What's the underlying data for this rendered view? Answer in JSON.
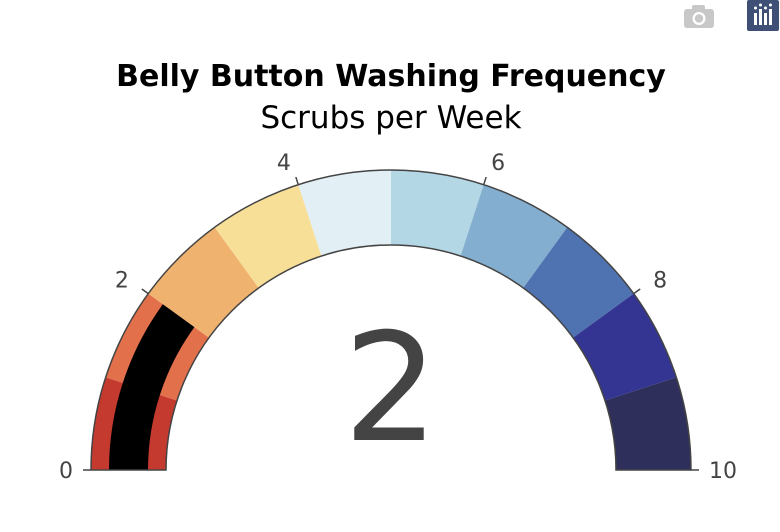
{
  "toolbar": {
    "camera_icon": "camera-icon",
    "plotly_logo": "plotly-logo-icon",
    "camera_color": "#c8c8c8",
    "logo_color": "#3f4f75"
  },
  "chart_data": {
    "type": "gauge",
    "title": "Belly Button Washing Frequency",
    "subtitle": "Scrubs per Week",
    "value": 2,
    "value_label": "2",
    "range": [
      0,
      10
    ],
    "ticks": [
      {
        "value": 0,
        "label": "0"
      },
      {
        "value": 2,
        "label": "2"
      },
      {
        "value": 4,
        "label": "4"
      },
      {
        "value": 6,
        "label": "6"
      },
      {
        "value": 8,
        "label": "8"
      },
      {
        "value": 10,
        "label": "10"
      }
    ],
    "steps": [
      {
        "range": [
          0,
          1
        ],
        "color": "#c53a2e"
      },
      {
        "range": [
          1,
          2
        ],
        "color": "#e2704b"
      },
      {
        "range": [
          2,
          3
        ],
        "color": "#efb36f"
      },
      {
        "range": [
          3,
          4
        ],
        "color": "#f8df98"
      },
      {
        "range": [
          4,
          5
        ],
        "color": "#e2eff5"
      },
      {
        "range": [
          5,
          6
        ],
        "color": "#b4d7e6"
      },
      {
        "range": [
          6,
          7
        ],
        "color": "#83aecf"
      },
      {
        "range": [
          7,
          8
        ],
        "color": "#4f72b0"
      },
      {
        "range": [
          8,
          9
        ],
        "color": "#343592"
      },
      {
        "range": [
          9,
          10
        ],
        "color": "#2e2f5b"
      }
    ],
    "bar_color": "#000000",
    "border_color": "#444444"
  }
}
